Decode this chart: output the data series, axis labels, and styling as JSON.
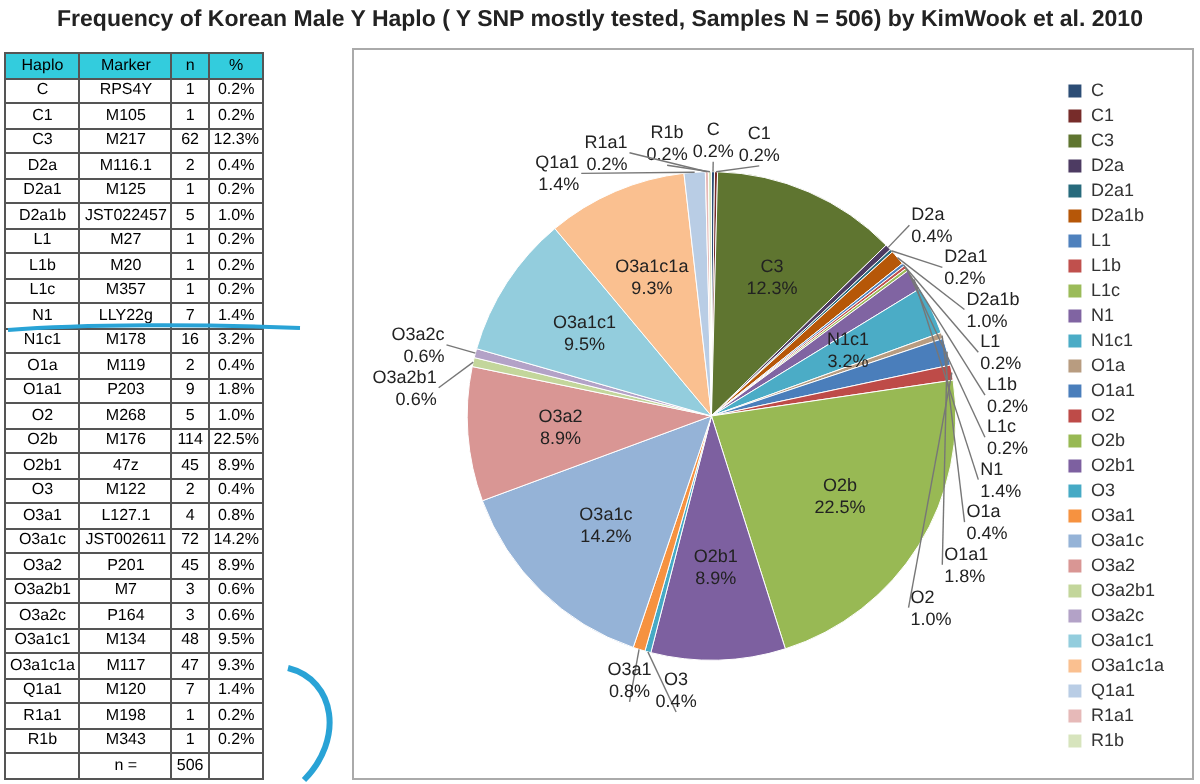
{
  "chart_data": [
    {
      "type": "other",
      "ylabel": "Haplo",
      "y2label": "Marker",
      "categories": [
        "C",
        "C1",
        "C3",
        "D2a",
        "D2a1",
        "D2a1b",
        "L1",
        "L1b",
        "L1c",
        "N1",
        "N1c1",
        "O1a",
        "O1a1",
        "O2",
        "O2b",
        "O2b1",
        "O3",
        "O3a1",
        "O3a1c",
        "O3a2",
        "O3a2b1",
        "O3a2c",
        "O3a1c1",
        "O3a1c1a",
        "Q1a1",
        "R1a1",
        "R1b"
      ],
      "y2_categories": [
        "RPS4Y",
        "M105",
        "M217",
        "M116.1",
        "M125",
        "JST022457",
        "M27",
        "M20",
        "M357",
        "LLY22g",
        "M178",
        "M119",
        "P203",
        "M268",
        "M176",
        "47z",
        "M122",
        "L127.1",
        "JST002611",
        "P201",
        "M7",
        "P164",
        "M134",
        "M117",
        "M120",
        "M198",
        "M343"
      ],
      "series": [
        {
          "name": "n",
          "values": [
            1,
            1,
            62,
            2,
            1,
            5,
            1,
            1,
            1,
            7,
            16,
            2,
            9,
            5,
            114,
            45,
            2,
            4,
            72,
            45,
            3,
            3,
            48,
            47,
            7,
            1,
            1
          ]
        },
        {
          "name": "%",
          "values": [
            0.2,
            0.2,
            12.3,
            0.4,
            0.2,
            1.0,
            0.2,
            0.2,
            0.2,
            1.4,
            3.2,
            0.4,
            1.8,
            1.0,
            22.5,
            8.9,
            0.4,
            0.8,
            14.2,
            8.9,
            0.6,
            0.6,
            9.5,
            9.3,
            1.4,
            0.2,
            0.2
          ],
          "value_labels": [
            "0.2%",
            "0.2%",
            "12.3%",
            "0.4%",
            "0.2%",
            "1.0%",
            "0.2%",
            "0.2%",
            "0.2%",
            "1.4%",
            "3.2%",
            "0.4%",
            "1.8%",
            "1.0%",
            "22.5%",
            "8.9%",
            "0.4%",
            "0.8%",
            "14.2%",
            "8.9%",
            "0.6%",
            "0.6%",
            "9.5%",
            "9.3%",
            "1.4%",
            "0.2%",
            "0.2%"
          ]
        }
      ],
      "data_labels": true,
      "annotations": [
        "n ="
      ],
      "totals": [
        "506"
      ]
    },
    {
      "type": "pie",
      "title": "Frequency of Korean Male Y Haplo ( Y SNP mostly tested, Samples N = 506)  by KimWook et al. 2010",
      "categories": [
        "C",
        "C1",
        "C3",
        "D2a",
        "D2a1",
        "D2a1b",
        "L1",
        "L1b",
        "L1c",
        "N1",
        "N1c1",
        "O1a",
        "O1a1",
        "O2",
        "O2b",
        "O2b1",
        "O3",
        "O3a1",
        "O3a1c",
        "O3a2",
        "O3a2b1",
        "O3a2c",
        "O3a1c1",
        "O3a1c1a",
        "Q1a1",
        "R1a1",
        "R1b"
      ],
      "values": [
        0.2,
        0.2,
        12.3,
        0.4,
        0.2,
        1.0,
        0.2,
        0.2,
        0.2,
        1.4,
        3.2,
        0.4,
        1.8,
        1.0,
        22.5,
        8.9,
        0.4,
        0.8,
        14.2,
        8.9,
        0.6,
        0.6,
        9.5,
        9.3,
        1.4,
        0.2,
        0.2
      ],
      "value_labels": [
        "0.2%",
        "0.2%",
        "12.3%",
        "0.4%",
        "0.2%",
        "1.0%",
        "0.2%",
        "0.2%",
        "0.2%",
        "1.4%",
        "3.2%",
        "0.4%",
        "1.8%",
        "1.0%",
        "22.5%",
        "8.9%",
        "0.4%",
        "0.8%",
        "14.2%",
        "8.9%",
        "0.6%",
        "0.6%",
        "9.5%",
        "9.3%",
        "1.4%",
        "0.2%",
        "0.2%"
      ],
      "colors": [
        "#2c4d75",
        "#772c2a",
        "#5f7530",
        "#4d3b62",
        "#276a7c",
        "#b65708",
        "#4f81bd",
        "#c0504d",
        "#9bbb59",
        "#8064a2",
        "#4bacc6",
        "#b89c80",
        "#4a7ebb",
        "#be4b48",
        "#98b954",
        "#7d60a0",
        "#46aac5",
        "#f69240",
        "#95b3d7",
        "#d99694",
        "#c3d69b",
        "#b3a2c7",
        "#93cddd",
        "#fac090",
        "#b9cde5",
        "#e6b9b8",
        "#d7e4bd"
      ],
      "legend": "right"
    }
  ]
}
